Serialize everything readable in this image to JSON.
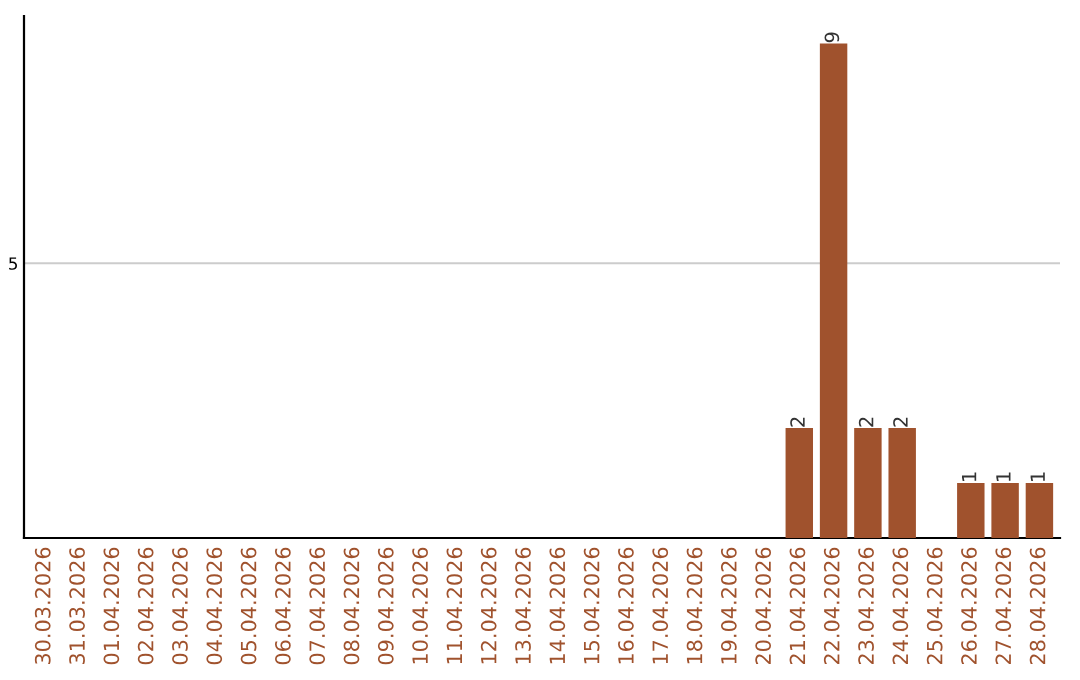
{
  "chart_data": {
    "type": "bar",
    "categories": [
      "30.03.2026",
      "31.03.2026",
      "01.04.2026",
      "02.04.2026",
      "03.04.2026",
      "04.04.2026",
      "05.04.2026",
      "06.04.2026",
      "07.04.2026",
      "08.04.2026",
      "09.04.2026",
      "10.04.2026",
      "11.04.2026",
      "12.04.2026",
      "13.04.2026",
      "14.04.2026",
      "15.04.2026",
      "16.04.2026",
      "17.04.2026",
      "18.04.2026",
      "19.04.2026",
      "20.04.2026",
      "21.04.2026",
      "22.04.2026",
      "23.04.2026",
      "24.04.2026",
      "25.04.2026",
      "26.04.2026",
      "27.04.2026",
      "28.04.2026"
    ],
    "values": [
      null,
      null,
      null,
      null,
      null,
      null,
      null,
      null,
      null,
      null,
      null,
      null,
      null,
      null,
      null,
      null,
      null,
      null,
      null,
      null,
      null,
      null,
      2,
      9,
      2,
      2,
      null,
      1,
      1,
      1
    ],
    "value_labels": [
      null,
      null,
      null,
      null,
      null,
      null,
      null,
      null,
      null,
      null,
      null,
      null,
      null,
      null,
      null,
      null,
      null,
      null,
      null,
      null,
      null,
      null,
      "2",
      "9",
      "2",
      "2",
      null,
      "1",
      "1",
      "1"
    ],
    "color": "#a0522d",
    "ylim": [
      0,
      9.5
    ],
    "yticks": [
      5
    ],
    "grid": "y",
    "legend": false
  }
}
